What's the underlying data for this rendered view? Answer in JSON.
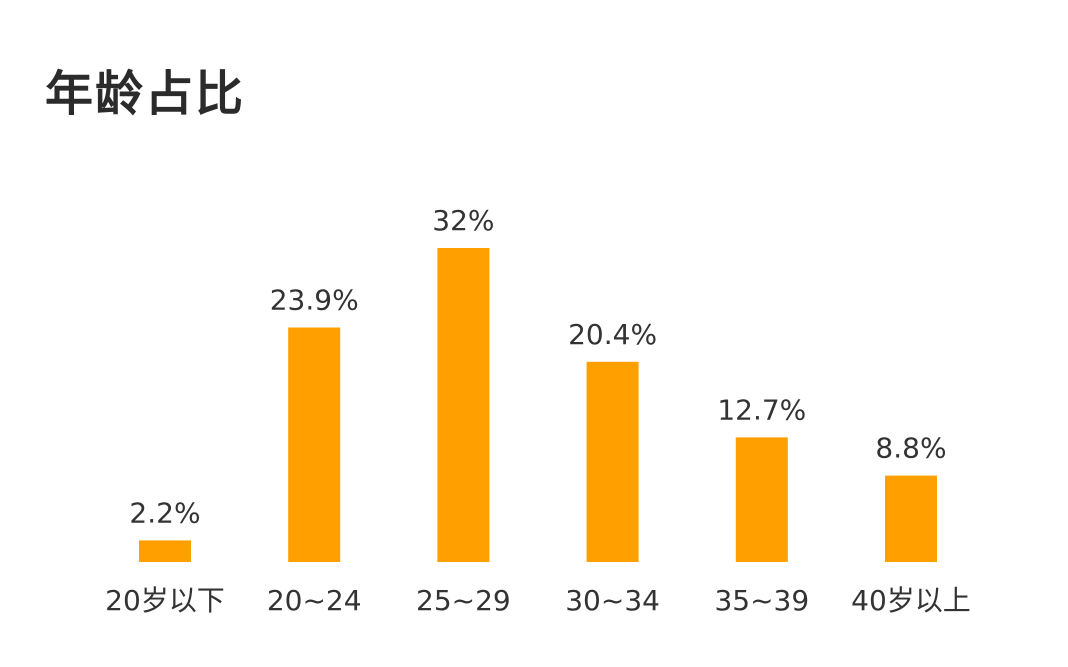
{
  "page": {
    "title": "年龄占比"
  },
  "chart_data": {
    "type": "bar",
    "title": "年龄占比",
    "categories": [
      "20岁以下",
      "20~24",
      "25~29",
      "30~34",
      "35~39",
      "40岁以上"
    ],
    "values": [
      2.2,
      23.9,
      32,
      20.4,
      12.7,
      8.8
    ],
    "value_labels": [
      "2.2%",
      "23.9%",
      "32%",
      "20.4%",
      "12.7%",
      "8.8%"
    ],
    "xlabel": "",
    "ylabel": "",
    "ylim": [
      0,
      32
    ],
    "grid": false,
    "bar_color": "#FF9F00"
  }
}
